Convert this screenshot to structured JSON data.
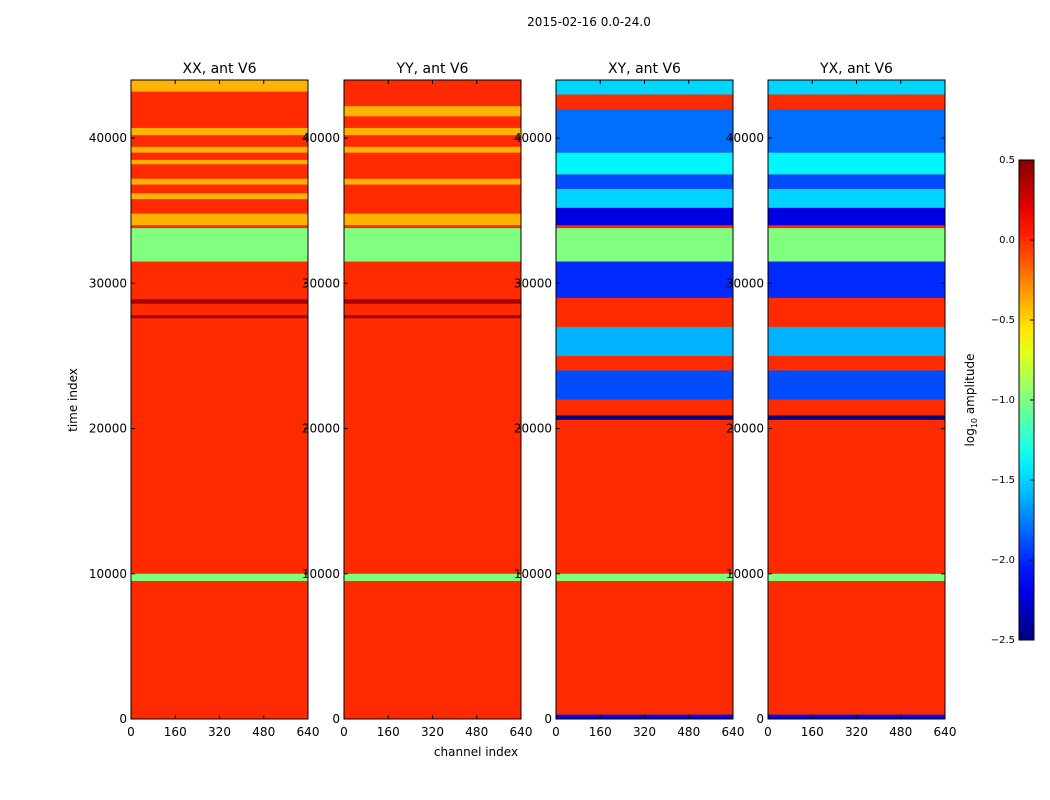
{
  "chart_data": {
    "type": "heatmap",
    "title": "2015-02-16 0.0-24.0",
    "xlabel": "channel index",
    "ylabel": "time index",
    "xlim": [
      0,
      640
    ],
    "ylim": [
      0,
      44000
    ],
    "x_ticks": [
      0,
      160,
      320,
      480,
      640
    ],
    "y_ticks": [
      0,
      10000,
      20000,
      30000,
      40000
    ],
    "colorbar": {
      "label": "log10 amplitude",
      "label_main": "log",
      "label_sub": "10",
      "label_tail": " amplitude",
      "range": [
        -2.5,
        0.5
      ],
      "ticks": [
        -2.5,
        -2.0,
        -1.5,
        -1.0,
        -0.5,
        0.0,
        0.5
      ],
      "tick_labels": [
        "−2.5",
        "−2.0",
        "−1.5",
        "−1.0",
        "−0.5",
        "0.0",
        "0.5"
      ],
      "colormap": "jet"
    },
    "panels": [
      {
        "title": "XX, ant V6",
        "base": 0.0,
        "bands": [
          {
            "t0": 9500,
            "t1": 10000,
            "v": -1.0
          },
          {
            "t0": 31500,
            "t1": 33800,
            "v": -1.0
          },
          {
            "t0": 34000,
            "t1": 34800,
            "v": -0.4
          },
          {
            "t0": 35800,
            "t1": 36200,
            "v": -0.4
          },
          {
            "t0": 36800,
            "t1": 37200,
            "v": -0.4
          },
          {
            "t0": 38200,
            "t1": 38500,
            "v": -0.4
          },
          {
            "t0": 39000,
            "t1": 39400,
            "v": -0.4
          },
          {
            "t0": 40200,
            "t1": 40700,
            "v": -0.4
          },
          {
            "t0": 43200,
            "t1": 44000,
            "v": -0.4
          },
          {
            "t0": 28600,
            "t1": 28900,
            "v": 0.4
          },
          {
            "t0": 27600,
            "t1": 27800,
            "v": 0.4
          }
        ]
      },
      {
        "title": "YY, ant V6",
        "base": 0.0,
        "bands": [
          {
            "t0": 9500,
            "t1": 10000,
            "v": -1.0
          },
          {
            "t0": 31500,
            "t1": 33800,
            "v": -1.0
          },
          {
            "t0": 34000,
            "t1": 34800,
            "v": -0.4
          },
          {
            "t0": 36800,
            "t1": 37200,
            "v": -0.4
          },
          {
            "t0": 39000,
            "t1": 39400,
            "v": -0.4
          },
          {
            "t0": 40200,
            "t1": 40700,
            "v": -0.4
          },
          {
            "t0": 41500,
            "t1": 42200,
            "v": -0.4
          },
          {
            "t0": 28600,
            "t1": 28900,
            "v": 0.4
          },
          {
            "t0": 27600,
            "t1": 27800,
            "v": 0.4
          }
        ]
      },
      {
        "title": "XY, ant V6",
        "base": 0.0,
        "bands": [
          {
            "t0": 9500,
            "t1": 10000,
            "v": -1.0
          },
          {
            "t0": 31500,
            "t1": 33800,
            "v": -1.0
          },
          {
            "t0": 34000,
            "t1": 35200,
            "v": -2.2
          },
          {
            "t0": 35200,
            "t1": 36500,
            "v": -1.5
          },
          {
            "t0": 36500,
            "t1": 37500,
            "v": -1.9
          },
          {
            "t0": 37500,
            "t1": 39000,
            "v": -1.4
          },
          {
            "t0": 39000,
            "t1": 42000,
            "v": -1.8
          },
          {
            "t0": 43000,
            "t1": 44000,
            "v": -1.5
          },
          {
            "t0": 25000,
            "t1": 27000,
            "v": -1.6
          },
          {
            "t0": 29000,
            "t1": 31500,
            "v": -2.0
          },
          {
            "t0": 22000,
            "t1": 24000,
            "v": -1.9
          },
          {
            "t0": 20600,
            "t1": 20900,
            "v": -2.5
          },
          {
            "t0": 0,
            "t1": 300,
            "v": -2.2
          }
        ]
      },
      {
        "title": "YX, ant V6",
        "base": 0.0,
        "bands": [
          {
            "t0": 9500,
            "t1": 10000,
            "v": -1.0
          },
          {
            "t0": 31500,
            "t1": 33800,
            "v": -1.0
          },
          {
            "t0": 34000,
            "t1": 35200,
            "v": -2.2
          },
          {
            "t0": 35200,
            "t1": 36500,
            "v": -1.5
          },
          {
            "t0": 36500,
            "t1": 37500,
            "v": -1.9
          },
          {
            "t0": 37500,
            "t1": 39000,
            "v": -1.4
          },
          {
            "t0": 39000,
            "t1": 42000,
            "v": -1.8
          },
          {
            "t0": 43000,
            "t1": 44000,
            "v": -1.5
          },
          {
            "t0": 25000,
            "t1": 27000,
            "v": -1.6
          },
          {
            "t0": 29000,
            "t1": 31500,
            "v": -2.0
          },
          {
            "t0": 22000,
            "t1": 24000,
            "v": -1.9
          },
          {
            "t0": 20600,
            "t1": 20900,
            "v": -2.5
          },
          {
            "t0": 0,
            "t1": 300,
            "v": -2.2
          }
        ]
      }
    ]
  }
}
